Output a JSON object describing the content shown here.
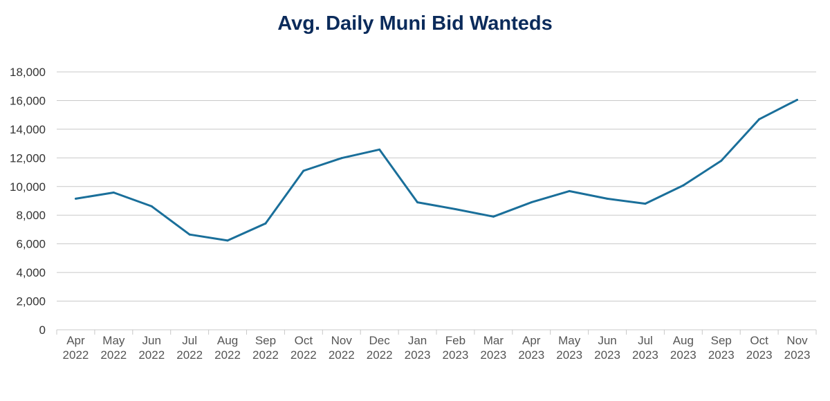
{
  "chart_data": {
    "type": "line",
    "title": "Avg. Daily Muni Bid Wanteds",
    "xlabel": "",
    "ylabel": "",
    "ylim": [
      0,
      18000
    ],
    "yticks": [
      "0",
      "2,000",
      "4,000",
      "6,000",
      "8,000",
      "10,000",
      "12,000",
      "14,000",
      "16,000",
      "18,000"
    ],
    "categories": [
      [
        "Apr",
        "2022"
      ],
      [
        "May",
        "2022"
      ],
      [
        "Jun",
        "2022"
      ],
      [
        "Jul",
        "2022"
      ],
      [
        "Aug",
        "2022"
      ],
      [
        "Sep",
        "2022"
      ],
      [
        "Oct",
        "2022"
      ],
      [
        "Nov",
        "2022"
      ],
      [
        "Dec",
        "2022"
      ],
      [
        "Jan",
        "2023"
      ],
      [
        "Feb",
        "2023"
      ],
      [
        "Mar",
        "2023"
      ],
      [
        "Apr",
        "2023"
      ],
      [
        "May",
        "2023"
      ],
      [
        "Jun",
        "2023"
      ],
      [
        "Jul",
        "2023"
      ],
      [
        "Aug",
        "2023"
      ],
      [
        "Sep",
        "2023"
      ],
      [
        "Oct",
        "2023"
      ],
      [
        "Nov",
        "2023"
      ]
    ],
    "series": [
      {
        "values": [
          9150,
          9580,
          8620,
          6650,
          6230,
          7420,
          11100,
          11980,
          12580,
          8900,
          8420,
          7900,
          8900,
          9680,
          9150,
          8800,
          10080,
          11800,
          14700,
          16050
        ]
      }
    ],
    "grid": true,
    "line_color": "#1a6f9a",
    "grid_color": "#c8c8c8"
  }
}
